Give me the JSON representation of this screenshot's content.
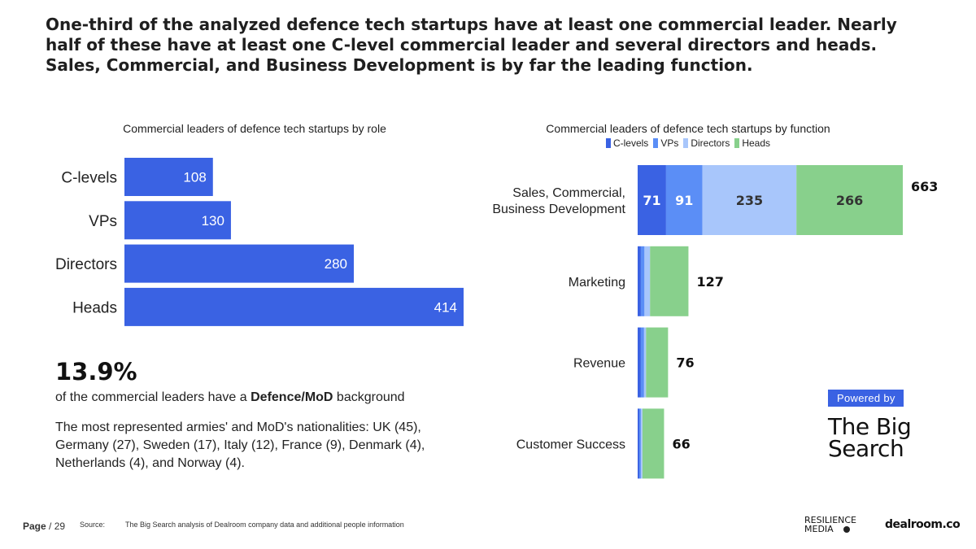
{
  "headline": "One-third of the analyzed defence tech startups have at least one commercial leader. Nearly half of these have at least one C-level commercial leader and several directors and heads. Sales, Commercial, and Business Development is by far the leading function.",
  "colors": {
    "primary_blue": "#3a62e3",
    "vp_blue": "#5b8ef6",
    "director_blue": "#a8c6fb",
    "heads_green": "#88d08c"
  },
  "chart_data": [
    {
      "type": "bar",
      "orientation": "horizontal",
      "title": "Commercial leaders of defence tech startups by role",
      "categories": [
        "C-levels",
        "VPs",
        "Directors",
        "Heads"
      ],
      "values": [
        108,
        130,
        280,
        414
      ],
      "xlim": [
        0,
        414
      ]
    },
    {
      "type": "bar",
      "orientation": "horizontal",
      "stacked": true,
      "title": "Commercial leaders of defence tech startups by function",
      "legend": [
        "C-levels",
        "VPs",
        "Directors",
        "Heads"
      ],
      "categories": [
        "Sales, Commercial,\nBusiness Development",
        "Marketing",
        "Revenue",
        "Customer Success"
      ],
      "series": [
        {
          "name": "C-levels",
          "values": [
            71,
            8,
            8,
            4
          ]
        },
        {
          "name": "VPs",
          "values": [
            91,
            9,
            8,
            4
          ]
        },
        {
          "name": "Directors",
          "values": [
            235,
            14,
            5,
            4
          ]
        },
        {
          "name": "Heads",
          "values": [
            266,
            96,
            55,
            54
          ]
        }
      ],
      "totals": [
        663,
        127,
        76,
        66
      ],
      "segment_labels_shown": [
        true,
        false,
        false,
        false
      ],
      "xlim": [
        0,
        663
      ]
    }
  ],
  "stat": {
    "value": "13.9%",
    "line_prefix": "of the commercial leaders have a ",
    "line_bold": "Defence/MoD",
    "line_suffix": " background",
    "paragraph": "The most represented armies' and MoD's nationalities: UK (45), Germany (27), Sweden (17), Italy (12), France (9), Denmark (4), Netherlands (4), and Norway (4)."
  },
  "branding": {
    "powered_by": "Powered by",
    "logo_line1": "The Big",
    "logo_line2": "Search",
    "resilience_line1": "RESILIENCE",
    "resilience_line2": "MEDIA",
    "dealroom": "dealroom.co"
  },
  "footer": {
    "page_label": "Page",
    "page_suffix": " / 29",
    "source_label": "Source:",
    "source_text": "The Big Search analysis of Dealroom company data and additional people information"
  }
}
